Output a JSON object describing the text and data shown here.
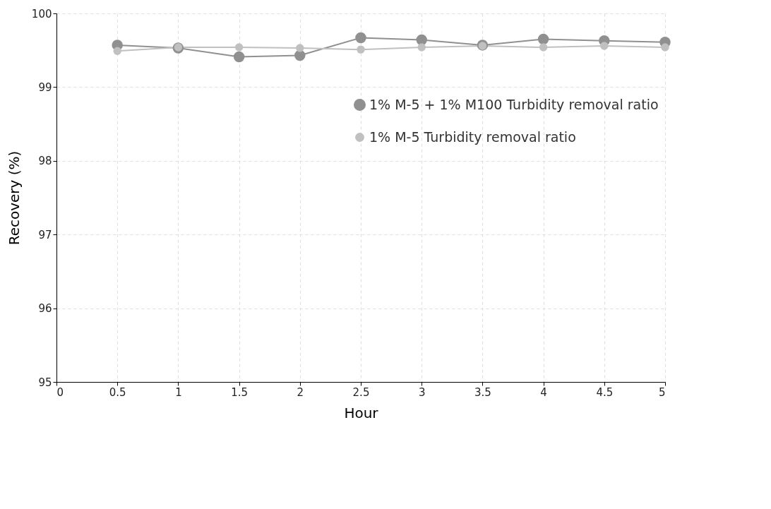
{
  "chart_data": {
    "type": "line",
    "xlabel": "Hour",
    "ylabel": "Recovery (%)",
    "x": [
      0.5,
      1,
      1.5,
      2,
      2.5,
      3,
      3.5,
      4,
      4.5,
      5
    ],
    "series": [
      {
        "name": "1% M-5 + 1% M100 Turbidity removal ratio",
        "color": "#909090",
        "values": [
          99.57,
          99.53,
          99.41,
          99.43,
          99.67,
          99.64,
          99.57,
          99.65,
          99.63,
          99.61
        ]
      },
      {
        "name": "1% M-5 Turbidity removal ratio",
        "color": "#c0c0c0",
        "values": [
          99.49,
          99.54,
          99.54,
          99.53,
          99.51,
          99.54,
          99.56,
          99.54,
          99.56,
          99.54
        ]
      }
    ],
    "xlim": [
      0,
      5
    ],
    "xticks": [
      0,
      0.5,
      1,
      1.5,
      2,
      2.5,
      3,
      3.5,
      4,
      4.5,
      5
    ],
    "ylim": [
      95,
      100
    ],
    "yticks": [
      95,
      96,
      97,
      98,
      99,
      100
    ],
    "grid": true,
    "legend": "top right",
    "marker": "circle",
    "line_style": "solid"
  }
}
